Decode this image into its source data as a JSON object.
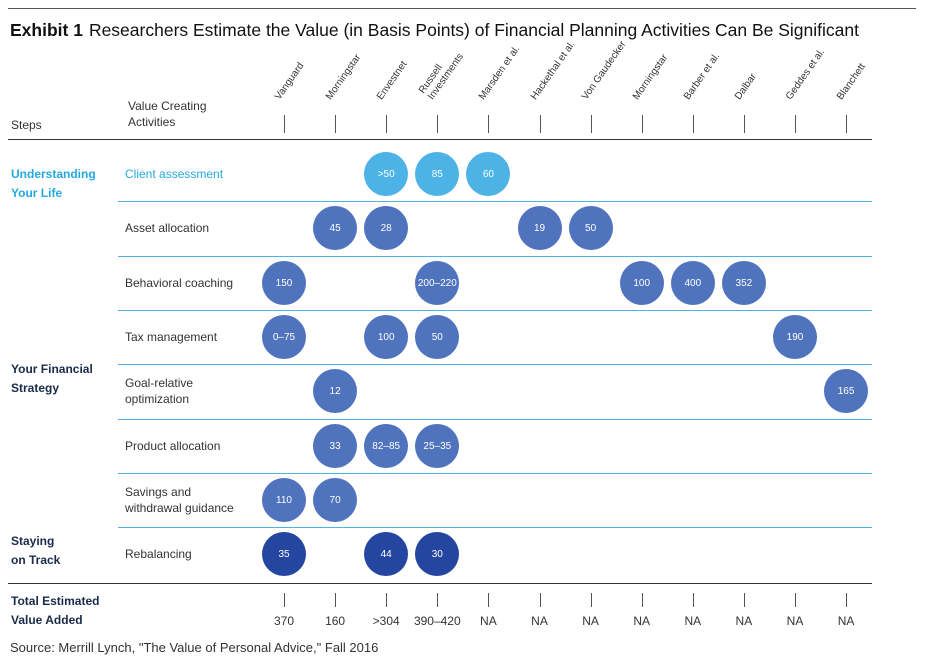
{
  "title": {
    "prefix": "Exhibit 1",
    "text": "Researchers Estimate the Value (in Basis Points) of Financial Planning Activities Can Be Significant"
  },
  "headers": {
    "steps": "Steps",
    "activities": "Value Creating Activities"
  },
  "source": "Source: Merrill Lynch, \"The Value of Personal Advice,\" Fall 2016",
  "colors": {
    "light": "#4db3e6",
    "medium": "#4f73bd",
    "dark": "#2446a0",
    "cyan_text": "#23a9e1",
    "navy_text": "#1b2a4a"
  },
  "chart_data": {
    "type": "table",
    "sources": [
      "Vanguard",
      "Morningstar",
      "Envestnet",
      "Russell\nInvestments",
      "Marsden et al.",
      "Hackethal et al.",
      "Von Gaudecker",
      "Morningstar",
      "Barber et al.",
      "Dalbar",
      "Geddes et al.",
      "Blanchett"
    ],
    "sections": [
      {
        "name": "Understanding\nYour Life",
        "color": "cyan"
      },
      {
        "name": "Your Financial\nStrategy",
        "color": "navy"
      },
      {
        "name": "Staying\non Track",
        "color": "navy"
      }
    ],
    "rows": [
      {
        "activity": "Client assessment",
        "section": 0,
        "shade": "light",
        "values": [
          "",
          "",
          ">50",
          "85",
          "60",
          "",
          "",
          "",
          "",
          "",
          "",
          ""
        ]
      },
      {
        "activity": "Asset allocation",
        "section": 1,
        "shade": "medium",
        "values": [
          "",
          "45",
          "28",
          "",
          "",
          "19",
          "50",
          "",
          "",
          "",
          "",
          ""
        ]
      },
      {
        "activity": "Behavioral coaching",
        "section": 1,
        "shade": "medium",
        "values": [
          "150",
          "",
          "",
          "200–220",
          "",
          "",
          "",
          "100",
          "400",
          "352",
          "",
          ""
        ]
      },
      {
        "activity": "Tax management",
        "section": 1,
        "shade": "medium",
        "values": [
          "0–75",
          "",
          "100",
          "50",
          "",
          "",
          "",
          "",
          "",
          "",
          "190",
          ""
        ]
      },
      {
        "activity": "Goal-relative\noptimization",
        "section": 1,
        "shade": "medium",
        "values": [
          "",
          "12",
          "",
          "",
          "",
          "",
          "",
          "",
          "",
          "",
          "",
          "165"
        ]
      },
      {
        "activity": "Product allocation",
        "section": 1,
        "shade": "medium",
        "values": [
          "",
          "33",
          "82–85",
          "25–35",
          "",
          "",
          "",
          "",
          "",
          "",
          "",
          ""
        ]
      },
      {
        "activity": "Savings and\nwithdrawal guidance",
        "section": 1,
        "shade": "medium",
        "values": [
          "110",
          "70",
          "",
          "",
          "",
          "",
          "",
          "",
          "",
          "",
          "",
          ""
        ]
      },
      {
        "activity": "Rebalancing",
        "section": 2,
        "shade": "dark",
        "values": [
          "35",
          "",
          "44",
          "30",
          "",
          "",
          "",
          "",
          "",
          "",
          "",
          ""
        ]
      }
    ],
    "total_label": "Total Estimated\nValue Added",
    "totals": [
      "370",
      "160",
      ">304",
      "390–420",
      "NA",
      "NA",
      "NA",
      "NA",
      "NA",
      "NA",
      "NA",
      "NA"
    ]
  }
}
